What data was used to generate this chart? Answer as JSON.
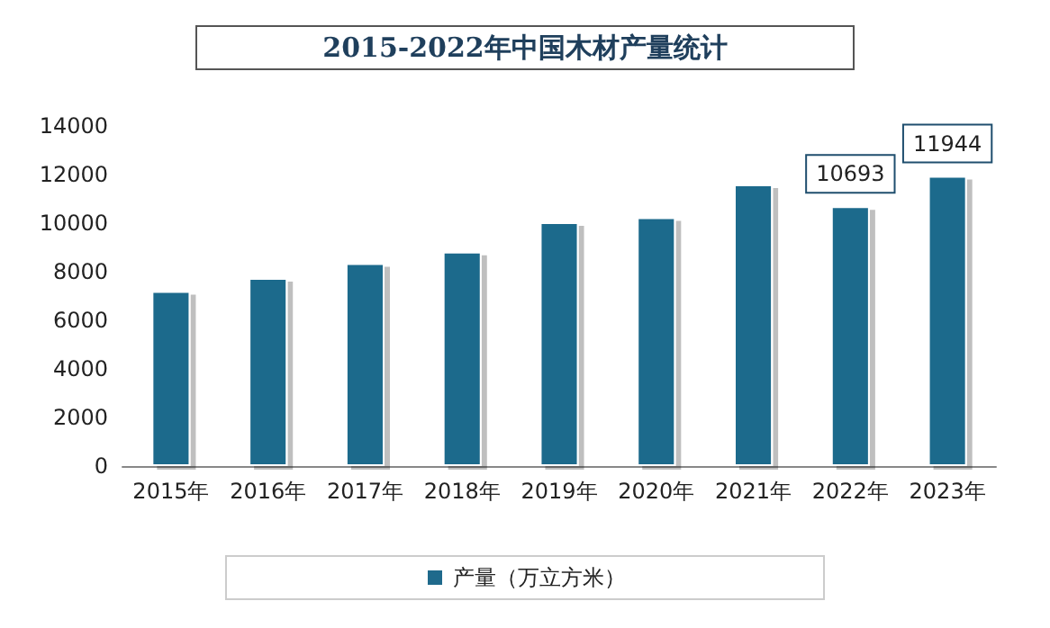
{
  "chart_data": {
    "type": "bar",
    "title": "2015-2022年中国木材产量统计",
    "categories": [
      "2015年",
      "2016年",
      "2017年",
      "2018年",
      "2019年",
      "2020年",
      "2021年",
      "2022年",
      "2023年"
    ],
    "series": [
      {
        "name": "产量（万立方米）",
        "color": "#1f6a8c",
        "values": [
          7200,
          7740,
          8350,
          8820,
          10040,
          10240,
          11590,
          10693,
          11944
        ],
        "value_labels": [
          null,
          null,
          null,
          null,
          null,
          null,
          null,
          "10693",
          "11944"
        ]
      }
    ],
    "ylim": [
      0,
      14000
    ],
    "yticks": [
      0,
      2000,
      4000,
      6000,
      8000,
      10000,
      12000,
      14000
    ],
    "legend": "bottom"
  }
}
